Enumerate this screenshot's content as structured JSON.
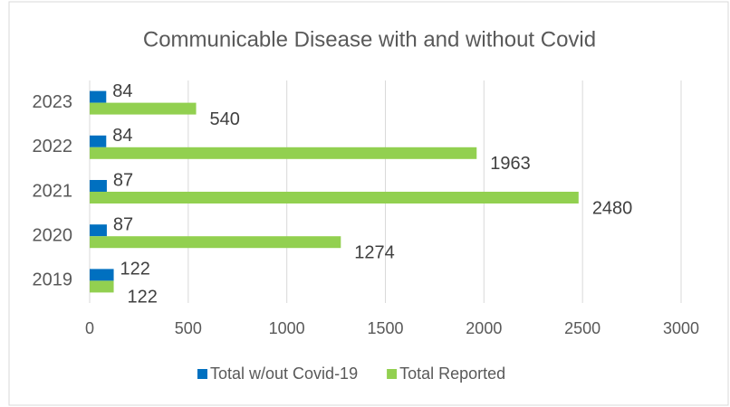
{
  "chart_data": {
    "type": "hbar",
    "title": "Communicable Disease with and without Covid",
    "categories": [
      "2019",
      "2020",
      "2021",
      "2022",
      "2023"
    ],
    "series": [
      {
        "name": "Total w/out Covid-19",
        "color": "#0070c0",
        "values": [
          122,
          87,
          87,
          84,
          84
        ]
      },
      {
        "name": "Total Reported",
        "color": "#92d050",
        "values": [
          122,
          1274,
          2480,
          1963,
          540
        ]
      }
    ],
    "xlim": [
      0,
      3000
    ],
    "xticks": [
      0,
      500,
      1000,
      1500,
      2000,
      2500,
      3000
    ],
    "grid": true,
    "legend": "bottom"
  }
}
